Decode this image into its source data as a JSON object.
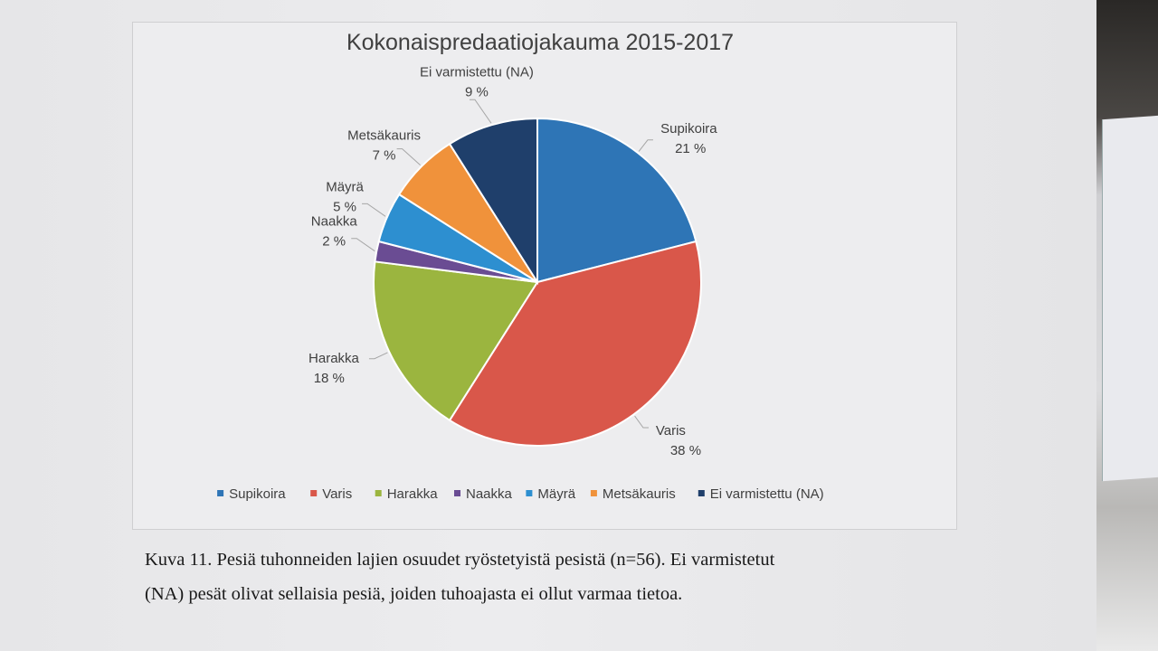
{
  "chart_data": {
    "type": "pie",
    "title": "Kokonaispredaatiojakauma 2015-2017",
    "categories": [
      "Supikoira",
      "Varis",
      "Harakka",
      "Naakka",
      "Mäyrä",
      "Metsäkauris",
      "Ei varmistettu (NA)"
    ],
    "values": [
      21,
      38,
      18,
      2,
      5,
      7,
      9
    ],
    "value_labels": [
      "21 %",
      "38 %",
      "18 %",
      "2 %",
      "5 %",
      "7 %",
      "9 %"
    ],
    "colors": [
      "#2e75b6",
      "#d9574a",
      "#9bb53f",
      "#6a4c93",
      "#2d8fd0",
      "#f0923b",
      "#1f3f6b"
    ],
    "legend_position": "bottom"
  },
  "caption": {
    "line1": "Kuva 11. Pesiä tuhonneiden lajien osuudet ryöstetyistä pesistä (n=56). Ei varmistetut",
    "line2": "(NA) pesät olivat sellaisia pesiä, joiden tuhoajasta ei ollut varmaa tietoa."
  }
}
